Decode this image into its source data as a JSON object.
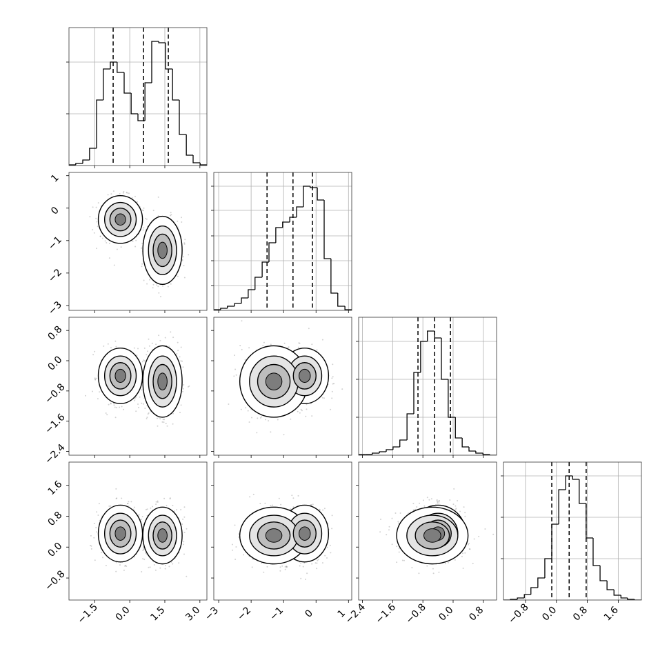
{
  "chart_data": {
    "type": "corner",
    "color": "#000000",
    "variables": [
      {
        "xlim": [
          -2.6,
          3.3
        ],
        "xticks": [
          {
            "value": -1.5,
            "label": "−1.5"
          },
          {
            "value": 0,
            "label": "0.0"
          },
          1.5,
          {
            "value": 3,
            "label": "3.0"
          }
        ],
        "quantiles": [
          -0.71,
          0.59,
          1.65
        ],
        "bins": [
          -2.6,
          -2.31,
          -2.01,
          -1.72,
          -1.42,
          -1.13,
          -0.83,
          -0.54,
          -0.24,
          0.06,
          0.35,
          0.65,
          0.94,
          1.24,
          1.53,
          1.83,
          2.12,
          2.42,
          2.71,
          3.01,
          3.3
        ],
        "hist": [
          1,
          3,
          8,
          25,
          95,
          140,
          150,
          135,
          105,
          75,
          65,
          120,
          180,
          178,
          140,
          95,
          45,
          15,
          4,
          1
        ],
        "hist_ylim": [
          0,
          200
        ],
        "hist_yticks": [
          75,
          150
        ]
      },
      {
        "xlim": [
          -3.15,
          1.1
        ],
        "xticks": [
          {
            "value": -3,
            "label": "−3"
          },
          {
            "value": -2,
            "label": "−2"
          },
          {
            "value": -1,
            "label": "−1"
          },
          0,
          1
        ],
        "quantiles": [
          -1.51,
          -0.71,
          -0.11
        ],
        "bins": [
          -3.15,
          -2.94,
          -2.73,
          -2.51,
          -2.3,
          -2.09,
          -1.88,
          -1.66,
          -1.45,
          -1.24,
          -1.03,
          -0.81,
          -0.6,
          -0.39,
          -0.18,
          0.04,
          0.25,
          0.46,
          0.67,
          0.89,
          1.1
        ],
        "hist": [
          1,
          3,
          6,
          10,
          18,
          30,
          48,
          70,
          98,
          120,
          128,
          135,
          150,
          180,
          178,
          160,
          75,
          25,
          6,
          1
        ],
        "hist_ylim": [
          0,
          200
        ],
        "hist_yticks": [
          36,
          72,
          108,
          145,
          180
        ]
      },
      {
        "xlim": [
          -2.5,
          1.15
        ],
        "xticks": [
          {
            "value": -2.4,
            "label": "−2.4"
          },
          {
            "value": -1.6,
            "label": "−1.6"
          },
          {
            "value": -0.8,
            "label": "−0.8"
          },
          {
            "value": 0,
            "label": "0.0"
          },
          0.8
        ],
        "quantiles": [
          -0.93,
          -0.49,
          -0.07
        ],
        "bins": [
          -2.5,
          -2.32,
          -2.14,
          -1.95,
          -1.77,
          -1.59,
          -1.41,
          -1.22,
          -1.04,
          -0.86,
          -0.68,
          -0.49,
          -0.31,
          -0.13,
          0.06,
          0.24,
          0.42,
          0.6,
          0.79,
          0.97,
          1.15
        ],
        "hist": [
          1,
          1,
          3,
          5,
          8,
          12,
          22,
          60,
          120,
          165,
          180,
          170,
          110,
          55,
          25,
          12,
          6,
          3,
          1,
          0
        ],
        "hist_ylim": [
          0,
          200
        ],
        "hist_yticks": [
          55,
          110,
          165
        ]
      },
      {
        "xlim": [
          -1.37,
          2.2
        ],
        "xticks": [
          {
            "value": -0.8,
            "label": "−0.8"
          },
          {
            "value": 0,
            "label": "0.0"
          },
          0.8,
          1.6
        ],
        "quantiles": [
          -0.12,
          0.33,
          0.77
        ],
        "bins": [
          -1.37,
          -1.19,
          -1.01,
          -0.83,
          -0.66,
          -0.48,
          -0.3,
          -0.12,
          0.06,
          0.24,
          0.42,
          0.59,
          0.77,
          0.95,
          1.13,
          1.31,
          1.49,
          1.67,
          1.84,
          2.02,
          2.2
        ],
        "hist": [
          0,
          1,
          3,
          8,
          18,
          32,
          60,
          110,
          160,
          180,
          175,
          140,
          90,
          50,
          28,
          15,
          7,
          3,
          1,
          0
        ],
        "hist_ylim": [
          0,
          200
        ],
        "hist_yticks": [
          60,
          120,
          180
        ]
      }
    ],
    "components": [
      {
        "mean": [
          -0.4,
          -0.35,
          -0.4,
          0.35
        ],
        "sd": [
          0.45,
          0.35,
          0.35,
          0.35
        ]
      },
      {
        "mean": [
          1.4,
          -1.3,
          -0.55,
          0.3
        ],
        "sd": [
          0.4,
          0.5,
          0.45,
          0.35
        ]
      }
    ]
  }
}
